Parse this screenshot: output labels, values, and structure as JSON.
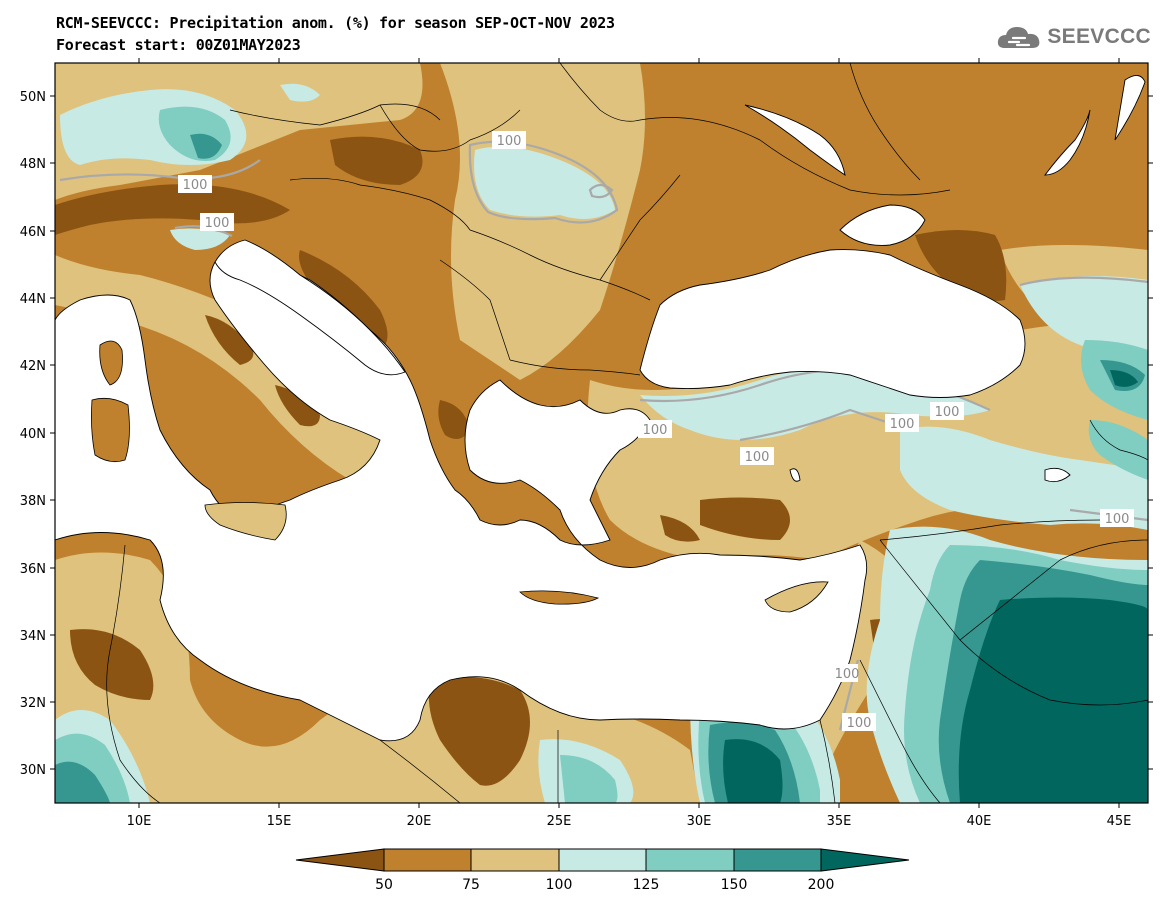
{
  "title": {
    "line1": "RCM-SEEVCCC: Precipitation anom. (%) for season SEP-OCT-NOV 2023",
    "line2": "Forecast start: 00Z01MAY2023"
  },
  "logo": {
    "icon": "cloud-icon",
    "text": "SEEVCCC",
    "color": "#7a7a7a"
  },
  "map": {
    "lon_range": [
      7,
      46
    ],
    "lat_range": [
      29,
      51
    ],
    "lat_ticks": [
      "50N",
      "48N",
      "46N",
      "44N",
      "42N",
      "40N",
      "38N",
      "36N",
      "34N",
      "32N",
      "30N"
    ],
    "lon_ticks": [
      "10E",
      "15E",
      "20E",
      "25E",
      "30E",
      "35E",
      "40E",
      "45E"
    ],
    "contour_labels": [
      "100",
      "100",
      "100",
      "100",
      "100",
      "100",
      "100",
      "100",
      "100",
      "100"
    ]
  },
  "colorbar": {
    "levels": [
      "50",
      "75",
      "100",
      "125",
      "150",
      "200"
    ],
    "colors": {
      "below_50": "#8c5413",
      "50_75": "#bf812d",
      "75_100": "#dfc27d",
      "100_125": "#c7eae5",
      "125_150": "#80cdc1",
      "150_200": "#35978f",
      "above_200": "#01665e"
    }
  }
}
